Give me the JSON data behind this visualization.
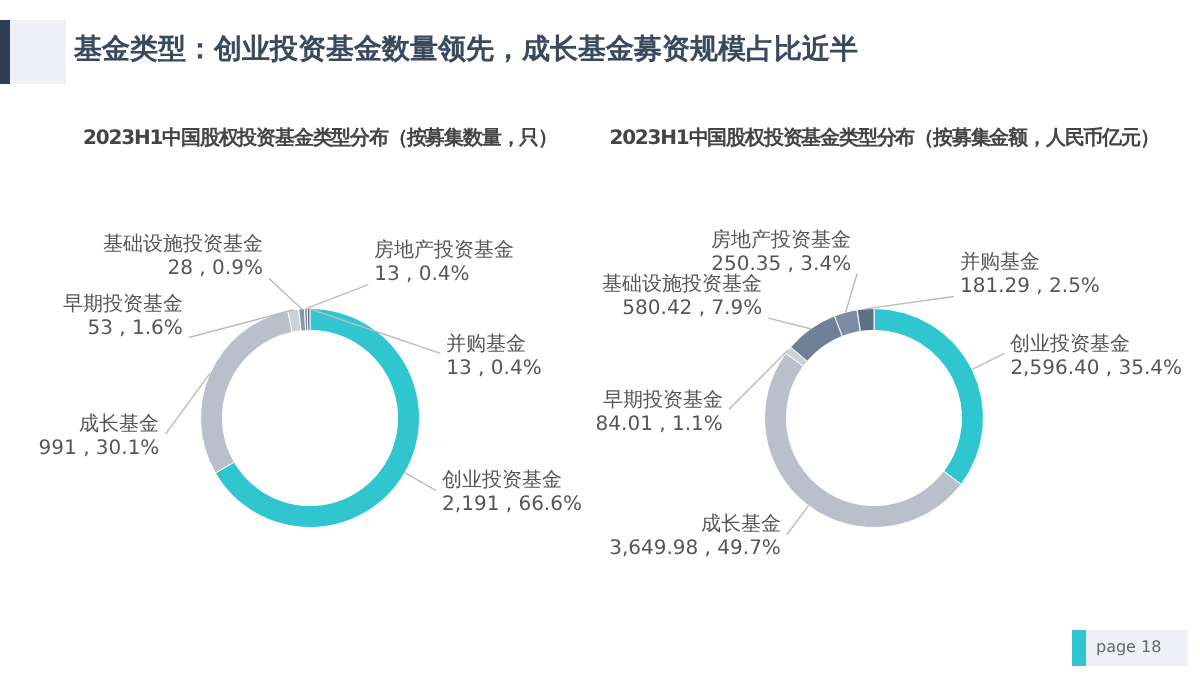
{
  "chart_data": [
    {
      "type": "other",
      "title": "基金类型：创业投资基金数量领先，成长基金募资规模占比近半",
      "annotations": [
        "page 18"
      ]
    },
    {
      "type": "donut",
      "title": "2023H1中国股权投资基金类型分布（按募集数量，只）",
      "categories": [
        "创业投资基金",
        "成长基金",
        "早期投资基金",
        "基础设施投资基金",
        "房地产投资基金",
        "并购基金"
      ],
      "values": [
        2191,
        991,
        53,
        28,
        13,
        13
      ],
      "value_labels": [
        "2,191 , 66.6%",
        "991 , 30.1%",
        "53 , 1.6%",
        "28 , 0.9%",
        "13 , 0.4%",
        "13 , 0.4%"
      ],
      "colors": [
        "#2fc6d0",
        "#b9c0cc",
        "#ccd1da",
        "#8a97aa",
        "#76859b",
        "#5e6f88"
      ]
    },
    {
      "type": "donut",
      "title": "2023H1中国股权投资基金类型分布（按募集金额，人民币亿元）",
      "categories": [
        "创业投资基金",
        "成长基金",
        "早期投资基金",
        "基础设施投资基金",
        "房地产投资基金",
        "并购基金"
      ],
      "values": [
        2596.4,
        3649.98,
        84.01,
        580.42,
        250.35,
        181.29
      ],
      "value_labels": [
        "2,596.40 , 35.4%",
        "3,649.98 , 49.7%",
        "84.01 , 1.1%",
        "580.42 , 7.9%",
        "250.35 , 3.4%",
        "181.29 , 2.5%"
      ],
      "colors": [
        "#2fc6d0",
        "#b9c0cc",
        "#ccd1da",
        "#6f8098",
        "#7e8ca1",
        "#5e6f88"
      ]
    }
  ]
}
